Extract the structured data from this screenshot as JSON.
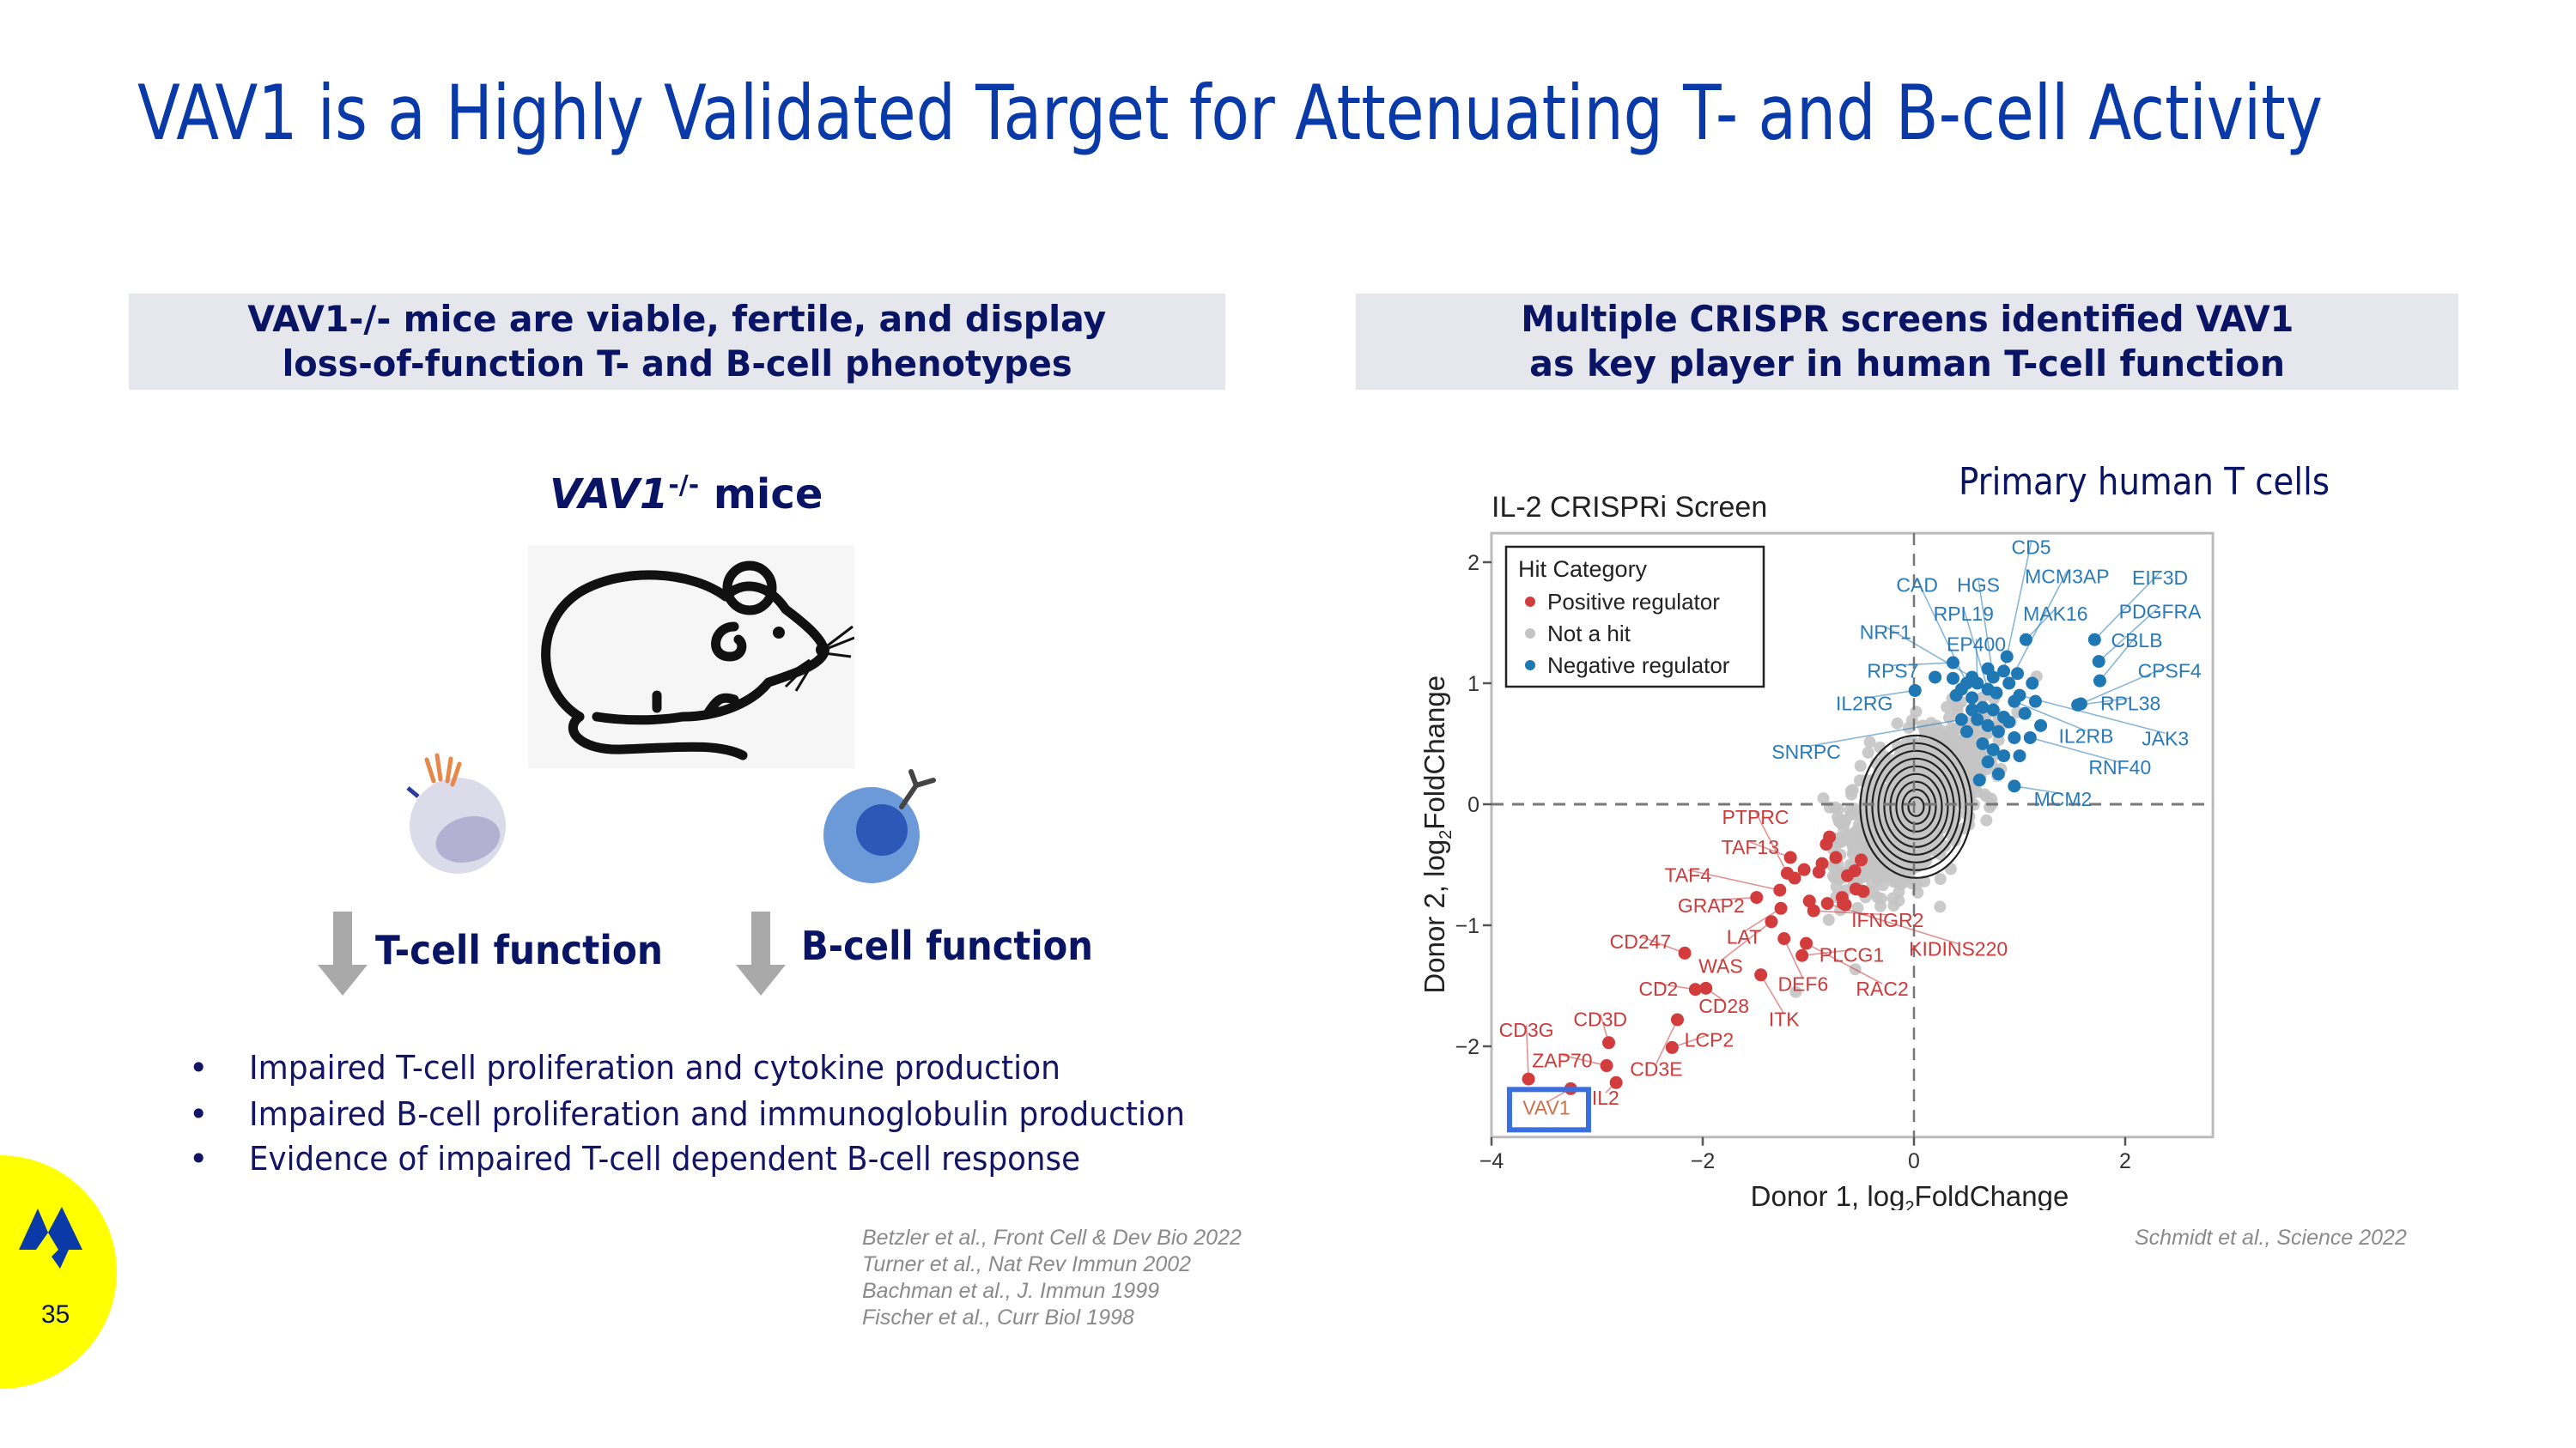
{
  "title": "VAV1 is a Highly Validated Target for Attenuating T- and B-cell Activity",
  "left_panel": {
    "header_line1": "VAV1-/- mice are viable, fertile, and display",
    "header_line2": "loss-of-function T- and B-cell phenotypes",
    "mice_label_gene": "VAV1",
    "mice_label_sup": "-/-",
    "mice_label_suffix": " mice",
    "t_cell_function": "T-cell function",
    "b_cell_function": "B-cell function",
    "bullets": [
      "Impaired T-cell proliferation and cytokine production",
      "Impaired B-cell proliferation and immunoglobulin production",
      "Evidence of impaired T-cell dependent B-cell response"
    ],
    "references": [
      "Betzler et al., Front Cell & Dev Bio 2022",
      "Turner et al., Nat Rev Immun 2002",
      "Bachman et al., J. Immun 1999",
      "Fischer et al., Curr Biol 1998"
    ],
    "icons": [
      "mouse-icon",
      "t-cell-icon",
      "b-cell-icon",
      "down-arrow-icon"
    ]
  },
  "right_panel": {
    "header_line1": "Multiple CRISPR screens identified VAV1",
    "header_line2": "as key player in human T-cell function",
    "subtitle": "Primary human T cells",
    "reference": "Schmidt et al., Science 2022"
  },
  "footer": {
    "page_number": "35",
    "logo_color": "#0a3aa8",
    "badge_color": "#ffff00"
  },
  "colors": {
    "title": "#0a3aa8",
    "header_bg": "#e6e7ec",
    "text_navy": "#0a1464",
    "highlight_box": "#3a6fe0"
  },
  "chart_data": {
    "type": "scatter",
    "title": "IL-2 CRISPRi Screen",
    "xlabel": "Donor 1, log2FoldChange",
    "ylabel": "Donor 2, log2FoldChange",
    "xlim": [
      -4,
      2.83
    ],
    "ylim": [
      -2.75,
      2.24
    ],
    "xticks": [
      -4,
      -2,
      0,
      2
    ],
    "yticks": [
      -2,
      -1,
      0,
      1,
      2
    ],
    "reference_lines": {
      "x": 0,
      "y": 0,
      "style": "dashed"
    },
    "density_contours": true,
    "grid": false,
    "highlighted_label": "VAV1",
    "legend": {
      "title": "Hit Category",
      "placement": "top-left",
      "entries": [
        {
          "name": "Positive regulator",
          "color": "#d23c3c"
        },
        {
          "name": "Not a hit",
          "color": "#c4c4c4"
        },
        {
          "name": "Negative regulator",
          "color": "#1f78b4"
        }
      ]
    },
    "series": [
      {
        "name": "Positive regulator",
        "color": "#d23c3c",
        "label_color": "#cc3a3a",
        "points": [
          {
            "x": -3.65,
            "y": -2.27,
            "label": "CD3G"
          },
          {
            "x": -3.25,
            "y": -2.35,
            "label": "VAV1"
          },
          {
            "x": -2.91,
            "y": -2.16,
            "label": "ZAP70"
          },
          {
            "x": -2.82,
            "y": -2.3,
            "label": "IL2"
          },
          {
            "x": -2.89,
            "y": -1.97,
            "label": "CD3D"
          },
          {
            "x": -2.29,
            "y": -2.01,
            "label": "LCP2"
          },
          {
            "x": -2.24,
            "y": -1.78,
            "label": "CD3E"
          },
          {
            "x": -2.07,
            "y": -1.53,
            "label": "CD2"
          },
          {
            "x": -1.97,
            "y": -1.52,
            "label": "CD28"
          },
          {
            "x": -2.17,
            "y": -1.23,
            "label": "CD247"
          },
          {
            "x": -1.45,
            "y": -1.41,
            "label": "ITK"
          },
          {
            "x": -1.35,
            "y": -0.97,
            "label": "WAS"
          },
          {
            "x": -1.23,
            "y": -1.11,
            "label": "DEF6"
          },
          {
            "x": -1.06,
            "y": -1.25,
            "label": "PLCG1"
          },
          {
            "x": -1.02,
            "y": -1.15,
            "label": "RAC2"
          },
          {
            "x": -1.26,
            "y": -0.86,
            "label": "LAT"
          },
          {
            "x": -1.49,
            "y": -0.77,
            "label": "GRAP2"
          },
          {
            "x": -1.27,
            "y": -0.71,
            "label": "TAF4"
          },
          {
            "x": -1.17,
            "y": -0.44,
            "label": "TAF13"
          },
          {
            "x": -1.2,
            "y": -0.57,
            "label": "PTPRC"
          },
          {
            "x": -0.95,
            "y": -0.88,
            "label": "IFNGR2"
          },
          {
            "x": -0.82,
            "y": -0.82,
            "label": "KIDINS220"
          },
          {
            "x": -0.67,
            "y": -0.82
          },
          {
            "x": -0.8,
            "y": -0.27
          },
          {
            "x": -0.83,
            "y": -0.33
          },
          {
            "x": -0.74,
            "y": -0.44
          },
          {
            "x": -0.5,
            "y": -0.46
          },
          {
            "x": -0.87,
            "y": -0.49
          },
          {
            "x": -1.04,
            "y": -0.54
          },
          {
            "x": -0.9,
            "y": -0.56
          },
          {
            "x": -0.56,
            "y": -0.55
          },
          {
            "x": -0.63,
            "y": -0.59
          },
          {
            "x": -1.13,
            "y": -0.61
          },
          {
            "x": -0.55,
            "y": -0.7
          },
          {
            "x": -0.48,
            "y": -0.72
          },
          {
            "x": -0.99,
            "y": -0.8
          },
          {
            "x": -0.68,
            "y": -0.77
          },
          {
            "x": -0.65,
            "y": -0.83
          }
        ]
      },
      {
        "name": "Negative regulator",
        "color": "#1f78b4",
        "label_color": "#2a7ab8",
        "points": [
          {
            "x": 0.85,
            "y": 1.1,
            "label": "CD5"
          },
          {
            "x": 0.5,
            "y": 1.0,
            "label": "CAD"
          },
          {
            "x": 0.75,
            "y": 1.05,
            "label": "HGS"
          },
          {
            "x": 0.9,
            "y": 1.0,
            "label": "MCM3AP"
          },
          {
            "x": 1.71,
            "y": 1.36,
            "label": "EIF3D"
          },
          {
            "x": 0.7,
            "y": 0.95,
            "label": "RPL19"
          },
          {
            "x": 1.06,
            "y": 1.36,
            "label": "MAK16"
          },
          {
            "x": 1.75,
            "y": 1.18,
            "label": "PDGFRA"
          },
          {
            "x": 0.55,
            "y": 1.05,
            "label": "NRF1"
          },
          {
            "x": 0.6,
            "y": 1.0,
            "label": "EP400"
          },
          {
            "x": 1.76,
            "y": 1.02,
            "label": "CBLB"
          },
          {
            "x": 0.37,
            "y": 1.17,
            "label": "RPS7"
          },
          {
            "x": 1.58,
            "y": 0.83,
            "label": "CPSF4"
          },
          {
            "x": 0.01,
            "y": 0.94,
            "label": "IL2RG"
          },
          {
            "x": 1.55,
            "y": 0.82,
            "label": "RPL38"
          },
          {
            "x": 0.45,
            "y": 0.7,
            "label": "SNRPC"
          },
          {
            "x": 0.95,
            "y": 0.85,
            "label": "IL2RB"
          },
          {
            "x": 1.0,
            "y": 0.9,
            "label": "JAK3"
          },
          {
            "x": 1.1,
            "y": 0.55,
            "label": "RNF40"
          },
          {
            "x": 0.95,
            "y": 0.15,
            "label": "MCM2"
          },
          {
            "x": 0.2,
            "y": 1.05
          },
          {
            "x": 0.37,
            "y": 1.04
          },
          {
            "x": 0.4,
            "y": 0.9
          },
          {
            "x": 0.55,
            "y": 0.88
          },
          {
            "x": 0.65,
            "y": 0.8
          },
          {
            "x": 0.75,
            "y": 0.78
          },
          {
            "x": 0.85,
            "y": 0.72
          },
          {
            "x": 0.6,
            "y": 0.7
          },
          {
            "x": 0.5,
            "y": 0.6
          },
          {
            "x": 0.7,
            "y": 0.65
          },
          {
            "x": 0.8,
            "y": 0.6
          },
          {
            "x": 0.9,
            "y": 0.68
          },
          {
            "x": 1.05,
            "y": 0.75
          },
          {
            "x": 1.15,
            "y": 0.85
          },
          {
            "x": 0.65,
            "y": 0.5
          },
          {
            "x": 0.75,
            "y": 0.45
          },
          {
            "x": 0.85,
            "y": 0.4
          },
          {
            "x": 0.95,
            "y": 0.55
          },
          {
            "x": 0.7,
            "y": 0.35
          },
          {
            "x": 0.8,
            "y": 0.25
          },
          {
            "x": 0.62,
            "y": 0.2
          },
          {
            "x": 1.0,
            "y": 0.4
          },
          {
            "x": 0.55,
            "y": 0.78
          },
          {
            "x": 0.78,
            "y": 0.92
          },
          {
            "x": 1.12,
            "y": 1.0
          },
          {
            "x": 0.98,
            "y": 1.08
          },
          {
            "x": 0.88,
            "y": 1.22
          },
          {
            "x": 0.45,
            "y": 0.95
          },
          {
            "x": 1.2,
            "y": 0.65
          },
          {
            "x": 0.7,
            "y": 1.12
          }
        ]
      },
      {
        "name": "Not a hit",
        "color": "#c4c4c4"
      }
    ]
  }
}
